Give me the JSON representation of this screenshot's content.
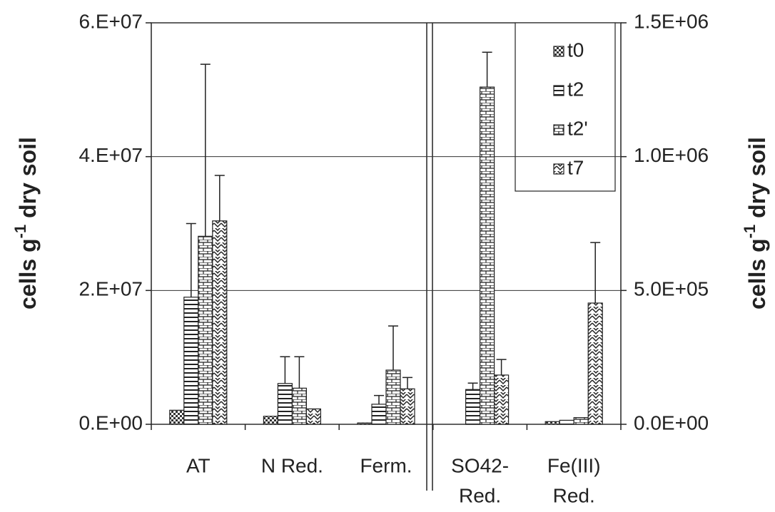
{
  "chart_data": {
    "type": "bar",
    "categories": [
      [
        "AT"
      ],
      [
        "N Red."
      ],
      [
        "Ferm."
      ],
      [
        "SO42-",
        "Red."
      ],
      [
        "Fe(III)",
        "Red."
      ]
    ],
    "category_axis": [
      "y",
      "y",
      "y",
      "y2",
      "y2"
    ],
    "ylabel": {
      "base": "cells g",
      "sup": "-1",
      "rest": " dry soil"
    },
    "ylim": [
      0,
      60000000
    ],
    "yticks": [
      {
        "value": 0,
        "label": "0.E+00"
      },
      {
        "value": 20000000,
        "label": "2.E+07"
      },
      {
        "value": 40000000,
        "label": "4.E+07"
      },
      {
        "value": 60000000,
        "label": "6.E+07"
      }
    ],
    "y2lim": [
      0,
      1500000
    ],
    "y2ticks": [
      {
        "value": 0,
        "label": "0.0E+00"
      },
      {
        "value": 500000,
        "label": "5.0E+05"
      },
      {
        "value": 1000000,
        "label": "1.0E+06"
      },
      {
        "value": 1500000,
        "label": "1.5E+06"
      }
    ],
    "grid": true,
    "legend": "upper right",
    "series": [
      {
        "name": "t0",
        "pattern": "checker",
        "values": [
          2100000,
          1200000,
          200000,
          null,
          10000
        ],
        "errors": [
          null,
          null,
          null,
          null,
          null
        ]
      },
      {
        "name": "t2",
        "pattern": "hlines",
        "values": [
          19000000,
          6100000,
          3000000,
          130000,
          15000
        ],
        "errors": [
          11000000,
          4000000,
          1300000,
          24000,
          null
        ]
      },
      {
        "name": "t2'",
        "pattern": "brick",
        "values": [
          28100000,
          5400000,
          8100000,
          1260000,
          25000
        ],
        "errors": [
          25700000,
          4700000,
          6600000,
          130000,
          null
        ]
      },
      {
        "name": "t7",
        "pattern": "zigzag",
        "values": [
          30400000,
          2300000,
          5300000,
          184000,
          453000
        ],
        "errors": [
          6800000,
          null,
          1700000,
          58000,
          226000
        ]
      }
    ]
  }
}
